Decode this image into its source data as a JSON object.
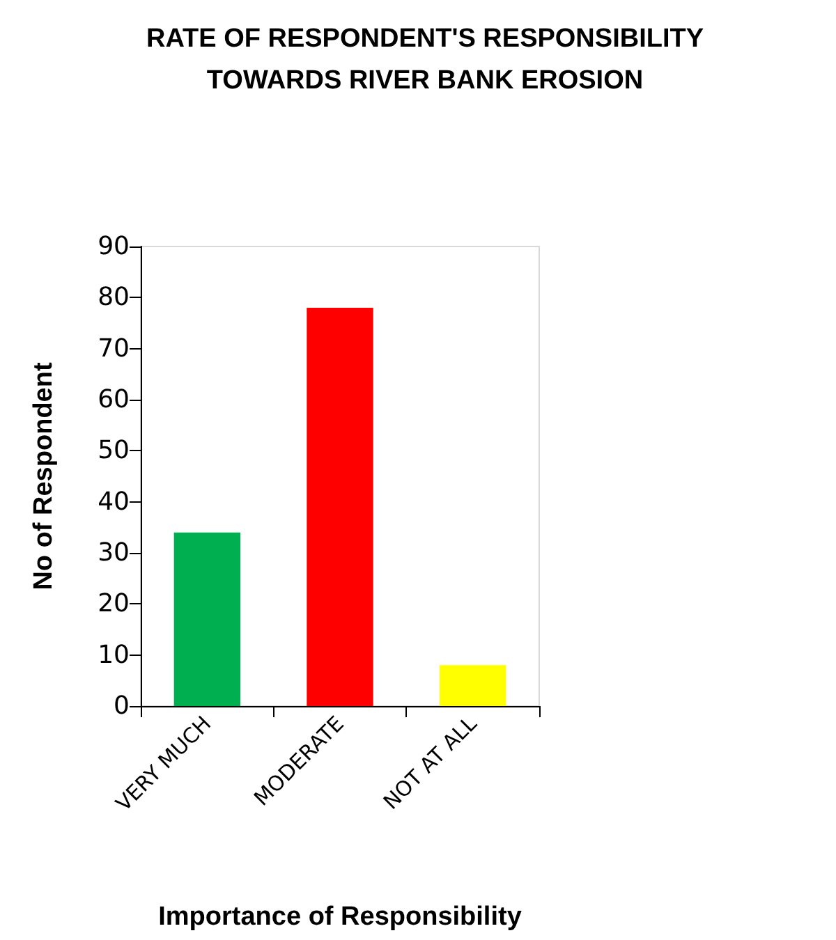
{
  "chart_data": {
    "type": "bar",
    "title": "RATE OF RESPONDENT'S RESPONSIBILITY\nTOWARDS RIVER BANK EROSION",
    "xlabel": "Importance of Responsibility",
    "ylabel": "No of Respondent",
    "categories": [
      "VERY MUCH",
      "MODERATE",
      "NOT AT ALL"
    ],
    "values": [
      34,
      78,
      8
    ],
    "colors": [
      "#00b050",
      "#ff0000",
      "#ffff00"
    ],
    "ylim": [
      0,
      90
    ],
    "yticks": [
      0,
      10,
      20,
      30,
      40,
      50,
      60,
      70,
      80,
      90
    ],
    "grid": false
  }
}
